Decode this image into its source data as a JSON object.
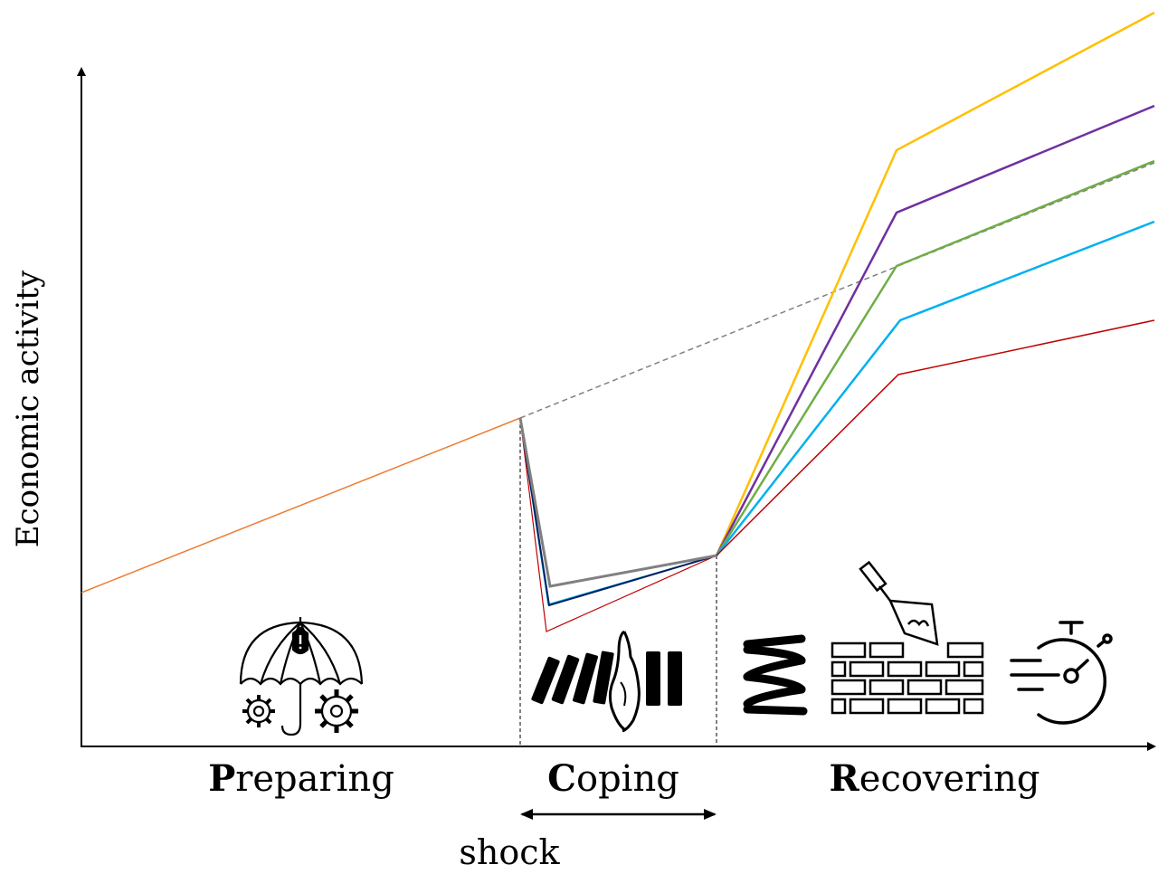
{
  "axis": {
    "ylabel": "Economic activity"
  },
  "phases": [
    {
      "initial": "P",
      "rest": "reparing",
      "name": "preparing"
    },
    {
      "initial": "C",
      "rest": "oping",
      "name": "coping"
    },
    {
      "initial": "R",
      "rest": "ecovering",
      "name": "recovering"
    }
  ],
  "shock_label": "shock",
  "icons": {
    "preparing": "umbrella-gears-icon",
    "coping": "domino-hand-icon",
    "recovering": [
      "spring-icon",
      "brick-wall-trowel-icon",
      "fast-stopwatch-icon"
    ]
  },
  "colors": {
    "pre_shock": "#ED7D31",
    "trend": "#808080",
    "path_1": "#FFC000",
    "path_2": "#7030A0",
    "path_3": "#70AD47",
    "path_4": "#00B0F0",
    "path_5": "#C00000"
  }
}
